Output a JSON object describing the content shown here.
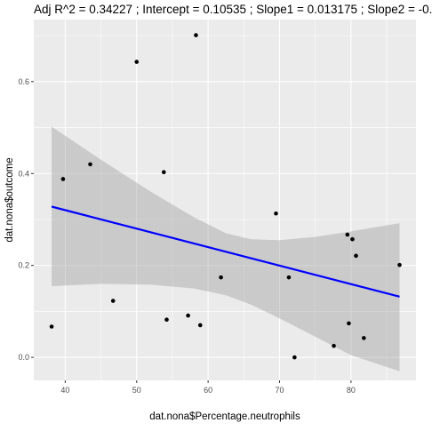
{
  "chart_data": {
    "type": "scatter",
    "title": "Adj R^2 =  0.34227 ; Intercept = 0.10535 ; Slope1 = 0.013175 ; Slope2 = -0.",
    "xlabel": "dat.nona$Percentage.neutrophils",
    "ylabel": "dat.nona$outcome",
    "xlim": [
      35.6,
      89.1
    ],
    "ylim": [
      -0.05,
      0.735
    ],
    "x_ticks": [
      40,
      50,
      60,
      70,
      80
    ],
    "y_ticks": [
      0.0,
      0.2,
      0.4,
      0.6
    ],
    "y_tick_labels": [
      "0.0",
      "0.2",
      "0.4",
      "0.6"
    ],
    "grid": true,
    "background": "#ebebeb",
    "points": [
      {
        "x": 38.1,
        "y": 0.067
      },
      {
        "x": 39.7,
        "y": 0.388
      },
      {
        "x": 43.5,
        "y": 0.42
      },
      {
        "x": 46.7,
        "y": 0.123
      },
      {
        "x": 50.0,
        "y": 0.643
      },
      {
        "x": 53.8,
        "y": 0.403
      },
      {
        "x": 54.2,
        "y": 0.082
      },
      {
        "x": 57.2,
        "y": 0.091
      },
      {
        "x": 58.3,
        "y": 0.701
      },
      {
        "x": 58.9,
        "y": 0.07
      },
      {
        "x": 61.8,
        "y": 0.174
      },
      {
        "x": 69.5,
        "y": 0.313
      },
      {
        "x": 71.3,
        "y": 0.174
      },
      {
        "x": 72.1,
        "y": 0.0
      },
      {
        "x": 77.6,
        "y": 0.025
      },
      {
        "x": 79.5,
        "y": 0.267
      },
      {
        "x": 79.7,
        "y": 0.074
      },
      {
        "x": 80.2,
        "y": 0.257
      },
      {
        "x": 80.7,
        "y": 0.221
      },
      {
        "x": 81.8,
        "y": 0.042
      },
      {
        "x": 86.8,
        "y": 0.201
      }
    ],
    "fit_line": {
      "x": [
        38.1,
        86.8
      ],
      "y": [
        0.328,
        0.132
      ],
      "color": "#0000ff"
    },
    "confidence_band": {
      "x": [
        38.1,
        45,
        52,
        58,
        62.5,
        66,
        70,
        75,
        80,
        86.8
      ],
      "upper": [
        0.502,
        0.43,
        0.36,
        0.305,
        0.27,
        0.257,
        0.255,
        0.262,
        0.274,
        0.292
      ],
      "lower": [
        0.155,
        0.16,
        0.158,
        0.15,
        0.135,
        0.115,
        0.085,
        0.045,
        0.005,
        -0.03
      ],
      "color": "#999999"
    },
    "point_color": "#000000"
  }
}
